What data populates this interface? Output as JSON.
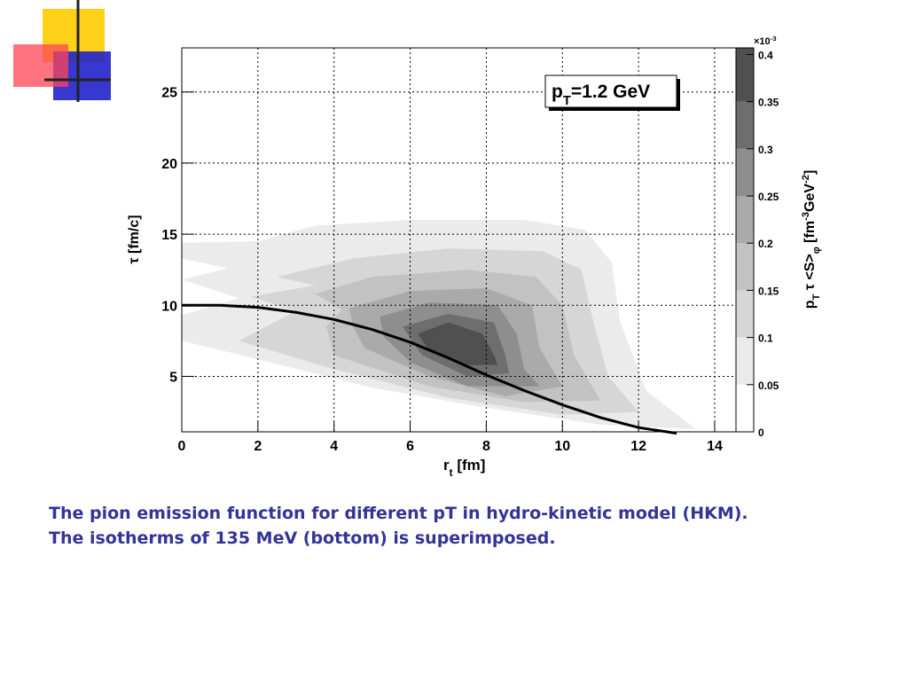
{
  "chart_data": {
    "type": "contour",
    "xlabel": [
      {
        "text": "r"
      },
      {
        "text": "t",
        "shift": "sub"
      },
      {
        "text": " [fm]"
      }
    ],
    "ylabel": [
      {
        "text": "τ [fm/c]"
      }
    ],
    "colorbar_label": [
      {
        "text": "p"
      },
      {
        "text": "T",
        "shift": "sub"
      },
      {
        "text": " τ <S>"
      },
      {
        "text": "φ",
        "shift": "sub"
      },
      {
        "text": " [fm"
      },
      {
        "text": "-3",
        "shift": "sup"
      },
      {
        "text": "GeV"
      },
      {
        "text": "-2",
        "shift": "sup"
      },
      {
        "text": "]"
      }
    ],
    "colorbar_exponent": [
      {
        "text": "×10"
      },
      {
        "text": "-3",
        "shift": "sup"
      }
    ],
    "annotation": [
      {
        "text": "p"
      },
      {
        "text": "T",
        "shift": "sub"
      },
      {
        "text": "=1.2 GeV"
      }
    ],
    "xlim": [
      0,
      14.56
    ],
    "xticks": [
      0,
      2,
      4,
      6,
      8,
      10,
      12,
      14
    ],
    "ylim": [
      1.1,
      28.1
    ],
    "yticks": [
      5,
      10,
      15,
      20,
      25
    ],
    "clim": [
      0,
      0.407
    ],
    "cticks": [
      0,
      0.05,
      0.1,
      0.15,
      0.2,
      0.25,
      0.3,
      0.35,
      0.4
    ],
    "grid": true,
    "contours": [
      {
        "level": 0.05,
        "color": "#ebebeb",
        "x": [
          0,
          2,
          3.5,
          6,
          9,
          10.6,
          11.3,
          11.5,
          12.2,
          13.5,
          11,
          8,
          5,
          2,
          0,
          0,
          1.5,
          0,
          1.2,
          0
        ],
        "y": [
          14.4,
          14.5,
          15.6,
          16,
          16,
          15.3,
          13,
          9,
          4,
          1.3,
          1.6,
          2.8,
          4.2,
          6.2,
          7.5,
          9.3,
          10.5,
          11.8,
          12.6,
          13.3
        ]
      },
      {
        "level": 0.1,
        "color": "#d6d6d6",
        "x": [
          2.5,
          4.5,
          7,
          9.5,
          10.5,
          10.8,
          11.2,
          12,
          10,
          7,
          4,
          1.5,
          3,
          1.8,
          3.5
        ],
        "y": [
          12,
          13.3,
          14,
          13.8,
          12.5,
          9,
          5,
          2.5,
          2.3,
          3.5,
          5.5,
          7.5,
          9.6,
          10.6,
          11.4
        ]
      },
      {
        "level": 0.15,
        "color": "#c2c2c2",
        "x": [
          3.5,
          5,
          7.5,
          9.3,
          10,
          10.3,
          11,
          9,
          6.5,
          4,
          3.8,
          4.2
        ],
        "y": [
          10.8,
          12,
          12.5,
          12,
          10,
          6.5,
          3.3,
          3.2,
          4.3,
          6.5,
          8.5,
          9.7
        ]
      },
      {
        "level": 0.2,
        "color": "#aaaaaa",
        "x": [
          4.4,
          6,
          8,
          9.2,
          9.4,
          10,
          8.5,
          6.5,
          4.8,
          4.5
        ],
        "y": [
          9.8,
          11,
          11.2,
          10,
          7,
          4.3,
          3.6,
          5,
          7,
          8.5
        ]
      },
      {
        "level": 0.25,
        "color": "#8e8e8e",
        "x": [
          5.2,
          6.5,
          8.3,
          8.8,
          9,
          9.4,
          7.5,
          6,
          5.3
        ],
        "y": [
          9.2,
          10.2,
          10,
          8,
          5.5,
          4.3,
          4.3,
          6,
          7.8
        ]
      },
      {
        "level": 0.3,
        "color": "#6e6e6e",
        "x": [
          5.8,
          7,
          8.2,
          8.5,
          8.6,
          7.5,
          6.3
        ],
        "y": [
          8.5,
          9.4,
          8.8,
          6.5,
          5.2,
          5,
          6.5
        ]
      },
      {
        "level": 0.35,
        "color": "#505050",
        "x": [
          6.2,
          7,
          7.9,
          8.2,
          8.3,
          7.5,
          6.5
        ],
        "y": [
          8,
          8.8,
          8,
          6.5,
          5.8,
          5.8,
          6.8
        ]
      }
    ],
    "series": [
      {
        "color": "#000000",
        "x": [
          0,
          1,
          2,
          3,
          4,
          5,
          6,
          7,
          8,
          9,
          10,
          11,
          12,
          13
        ],
        "values": [
          10,
          10,
          9.85,
          9.5,
          9,
          8.3,
          7.4,
          6.3,
          5.1,
          4,
          3,
          2.1,
          1.4,
          1.0
        ]
      }
    ]
  },
  "caption": {
    "lines": [
      "The pion emission function for different pT in hydro-kinetic model (HKM).",
      "The isotherms of 135 MeV (bottom) is superimposed."
    ]
  }
}
